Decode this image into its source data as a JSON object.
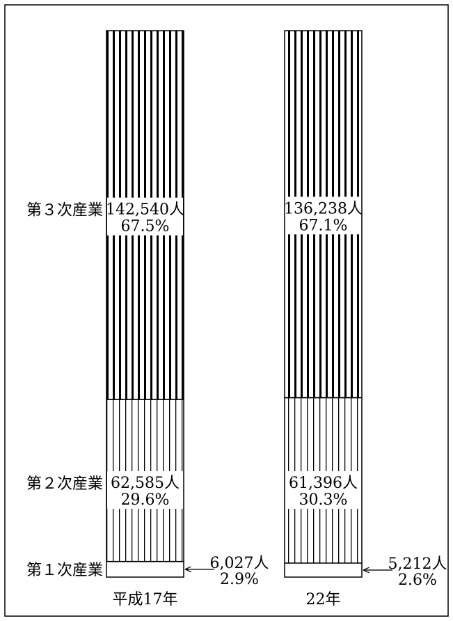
{
  "chart_data": {
    "type": "bar",
    "stacked": true,
    "categories": [
      "平成17年",
      "22年"
    ],
    "series": [
      {
        "name": "第１次産業",
        "values": [
          6027,
          5212
        ],
        "labels": [
          "6,027人",
          "5,212人"
        ],
        "percent_labels": [
          "2.9%",
          "2.6%"
        ],
        "pattern": "blank"
      },
      {
        "name": "第２次産業",
        "values": [
          62585,
          61396
        ],
        "labels": [
          "62,585人",
          "61,396人"
        ],
        "percent_labels": [
          "29.6%",
          "30.3%"
        ],
        "pattern": "thin-vertical-lines"
      },
      {
        "name": "第３次産業",
        "values": [
          142540,
          136238
        ],
        "labels": [
          "142,540人",
          "136,238人"
        ],
        "percent_labels": [
          "67.5%",
          "67.1%"
        ],
        "pattern": "thick-vertical-lines"
      }
    ],
    "normalized": true,
    "grid": false,
    "legend": "none"
  }
}
